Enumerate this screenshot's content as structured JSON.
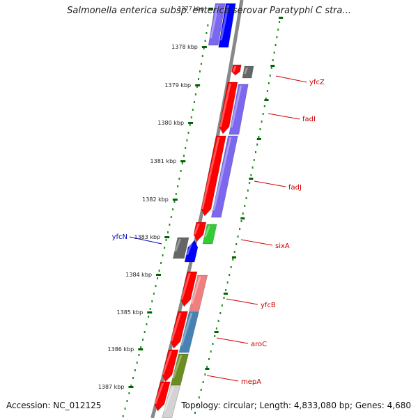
{
  "title": "Salmonella enterica subsp. enterica serovar Paratyphi C stra...",
  "accession": "Accession: NC_012125",
  "summary": "Topology: circular; Length: 4,833,080 bp; Genes: 4,680",
  "kbp_ticks": [
    "1377 kbp",
    "1378 kbp",
    "1379 kbp",
    "1380 kbp",
    "1381 kbp",
    "1382 kbp",
    "1383 kbp",
    "1384 kbp",
    "1385 kbp",
    "1386 kbp",
    "1387 kbp"
  ],
  "gene_labels": [
    {
      "name": "yfcZ",
      "color": "#cc0000"
    },
    {
      "name": "fadI",
      "color": "#cc0000"
    },
    {
      "name": "fadJ",
      "color": "#cc0000"
    },
    {
      "name": "sixA",
      "color": "#cc0000"
    },
    {
      "name": "yfcB",
      "color": "#cc0000"
    },
    {
      "name": "aroC",
      "color": "#cc0000"
    },
    {
      "name": "mepA",
      "color": "#cc0000"
    },
    {
      "name": "yfcN",
      "color": "#0000cc"
    }
  ],
  "colors": {
    "red": "#ff0000",
    "blue": "#0000ff",
    "purple": "#7b68ee",
    "green": "#33cc33",
    "gray": "#666666",
    "pink": "#f08080",
    "steelblue": "#4682b4",
    "olive": "#6b8e23",
    "lightgray": "#d3d3d3",
    "tick": "#006400",
    "dots": "#228b22",
    "backbone": "#888888"
  }
}
